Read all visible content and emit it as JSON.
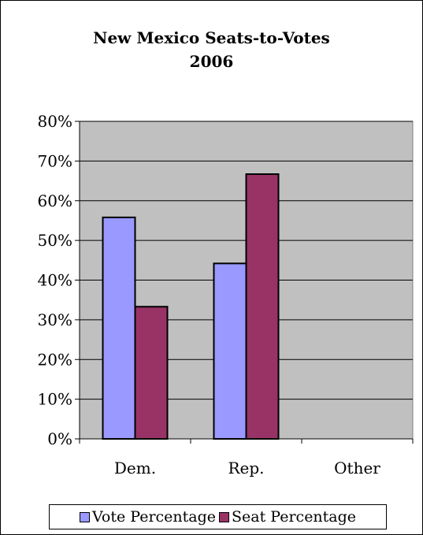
{
  "chart_data": {
    "type": "bar",
    "title_lines": [
      "New Mexico Seats-to-Votes",
      "2006"
    ],
    "categories": [
      "Dem.",
      "Rep.",
      "Other"
    ],
    "series": [
      {
        "name": "Vote Percentage",
        "color": "#9999ff",
        "values": [
          55.8,
          44.2,
          0
        ]
      },
      {
        "name": "Seat Percentage",
        "color": "#993366",
        "values": [
          33.3,
          66.7,
          0
        ]
      }
    ],
    "ylim": [
      0,
      80
    ],
    "y_ticks": [
      "0%",
      "10%",
      "20%",
      "30%",
      "40%",
      "50%",
      "60%",
      "70%",
      "80%"
    ],
    "plot_background": "#c0c0c0",
    "grid": true,
    "legend_position": "bottom"
  }
}
